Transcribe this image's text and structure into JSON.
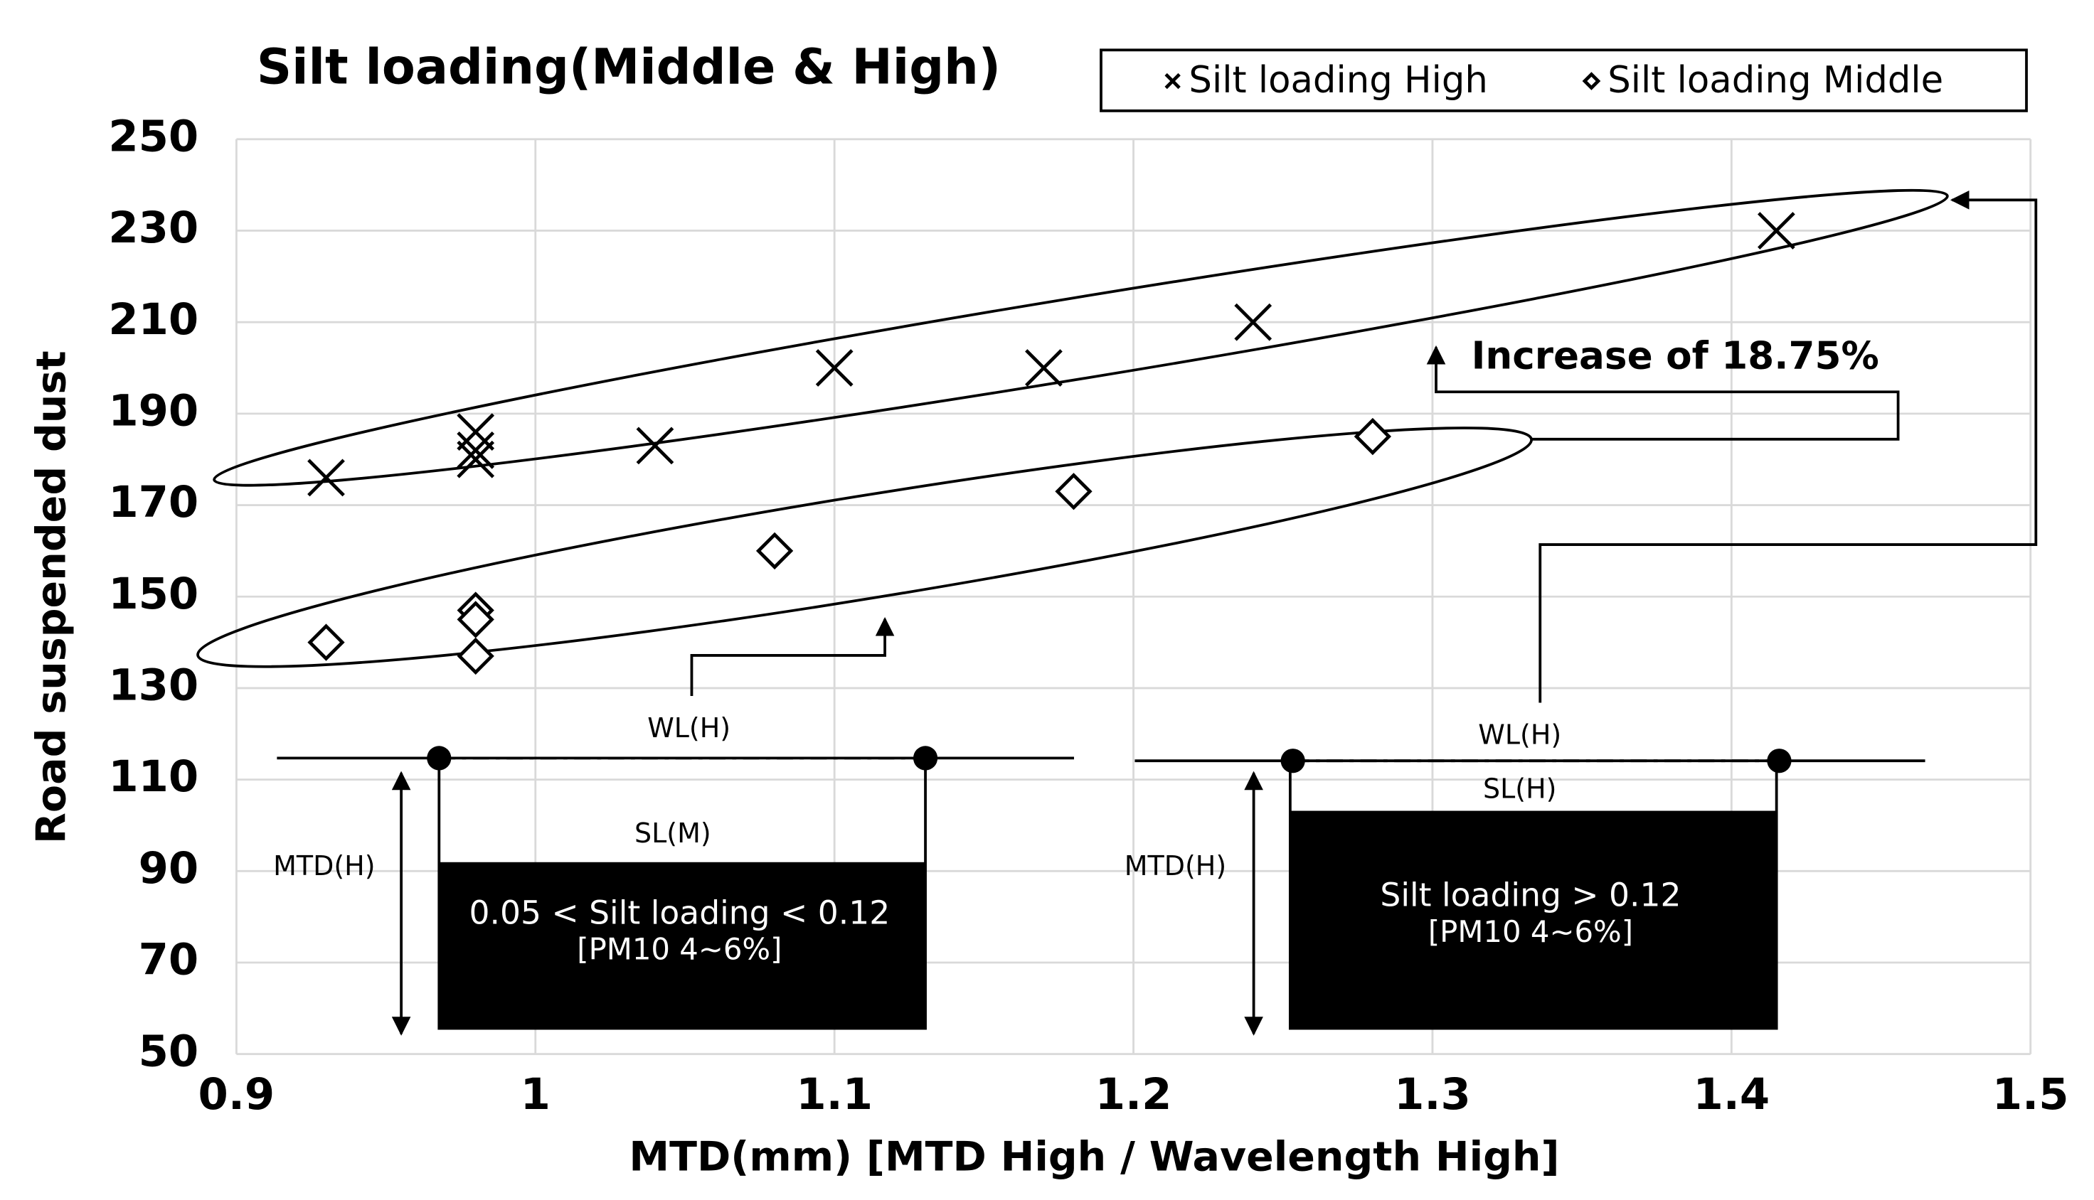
{
  "chart_data": {
    "type": "scatter",
    "title": "Silt loading(Middle & High)",
    "xlabel": "MTD(mm) [MTD High / Wavelength High]",
    "ylabel": "Road suspended dust",
    "xlim": [
      0.9,
      1.5
    ],
    "xticks": [
      0.9,
      1,
      1.1,
      1.2,
      1.3,
      1.4,
      1.5
    ],
    "ylim": [
      50,
      250
    ],
    "yticks": [
      50,
      70,
      90,
      110,
      130,
      150,
      170,
      190,
      210,
      230,
      250
    ],
    "grid": true,
    "legend": "top-right",
    "series": [
      {
        "name": "Silt loading High",
        "marker": "x",
        "color": "#000000",
        "x": [
          0.93,
          0.98,
          0.98,
          0.98,
          1.04,
          1.1,
          1.17,
          1.24,
          1.415
        ],
        "values": [
          176,
          186,
          182,
          180,
          183,
          200,
          200,
          210,
          230
        ]
      },
      {
        "name": "Silt loading Middle",
        "marker": "diamond",
        "color": "#000000",
        "x": [
          0.93,
          0.98,
          0.98,
          0.98,
          1.08,
          1.18,
          1.28
        ],
        "values": [
          140,
          147,
          145,
          137,
          160,
          173,
          185
        ]
      }
    ],
    "annotations": [
      "Increase of 18.75%",
      "WL(H)",
      "SL(M)",
      "MTD(H)",
      "0.05 < Silt loading < 0.12",
      "[PM10 4~6%]",
      "WL(H)",
      "SL(H)",
      "MTD(H)",
      "Silt loading > 0.12",
      "[PM10 4~6%]"
    ]
  }
}
